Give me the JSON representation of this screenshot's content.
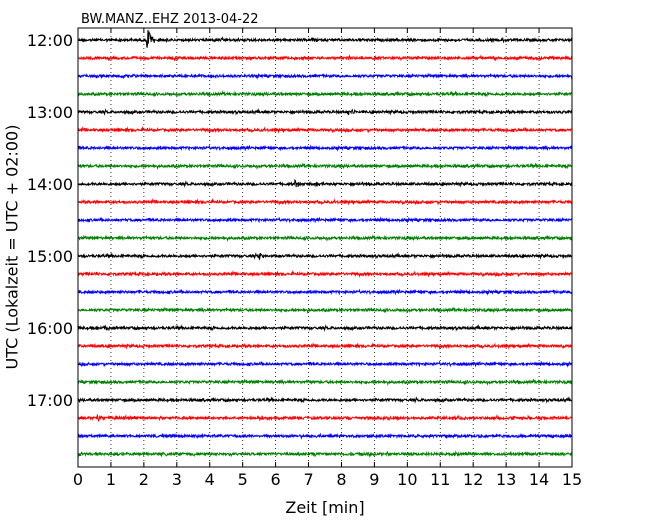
{
  "chart_data": {
    "type": "line",
    "title": "BW.MANZ..EHZ 2013-04-22",
    "xlabel": "Zeit  [min]",
    "ylabel": "UTC (Lokalzeit = UTC + 02:00)",
    "xlim": [
      0,
      15
    ],
    "x_ticks": [
      "0",
      "1",
      "2",
      "3",
      "4",
      "5",
      "6",
      "7",
      "8",
      "9",
      "10",
      "11",
      "12",
      "13",
      "14",
      "15"
    ],
    "y_tick_labels": [
      "12:00",
      "13:00",
      "14:00",
      "15:00",
      "16:00",
      "17:00"
    ],
    "grid": "vertical dotted",
    "trace_interval_min": 15,
    "trace_colors": [
      "#000000",
      "#ff0000",
      "#0000ff",
      "#008000"
    ],
    "series": [
      {
        "start": "12:00",
        "events": [
          {
            "t": 2.1,
            "amp": 1.0
          }
        ]
      },
      {
        "start": "12:15",
        "events": []
      },
      {
        "start": "12:30",
        "events": []
      },
      {
        "start": "12:45",
        "events": []
      },
      {
        "start": "13:00",
        "events": [
          {
            "t": 8.2,
            "amp": 0.25
          }
        ]
      },
      {
        "start": "13:15",
        "events": []
      },
      {
        "start": "13:30",
        "events": []
      },
      {
        "start": "13:45",
        "events": []
      },
      {
        "start": "14:00",
        "events": [
          {
            "t": 6.6,
            "amp": 0.3
          },
          {
            "t": 7.2,
            "amp": 0.25
          }
        ]
      },
      {
        "start": "14:15",
        "events": []
      },
      {
        "start": "14:30",
        "events": []
      },
      {
        "start": "14:45",
        "events": []
      },
      {
        "start": "15:00",
        "events": [
          {
            "t": 5.5,
            "amp": 0.25
          }
        ]
      },
      {
        "start": "15:15",
        "events": []
      },
      {
        "start": "15:30",
        "events": []
      },
      {
        "start": "15:45",
        "events": []
      },
      {
        "start": "16:00",
        "events": [
          {
            "t": 0.8,
            "amp": 0.25
          }
        ]
      },
      {
        "start": "16:15",
        "events": []
      },
      {
        "start": "16:30",
        "events": []
      },
      {
        "start": "16:45",
        "events": []
      },
      {
        "start": "17:00",
        "events": []
      },
      {
        "start": "17:15",
        "events": [
          {
            "t": 0.6,
            "amp": 0.25
          }
        ]
      },
      {
        "start": "17:30",
        "events": []
      },
      {
        "start": "17:45",
        "events": []
      }
    ]
  }
}
